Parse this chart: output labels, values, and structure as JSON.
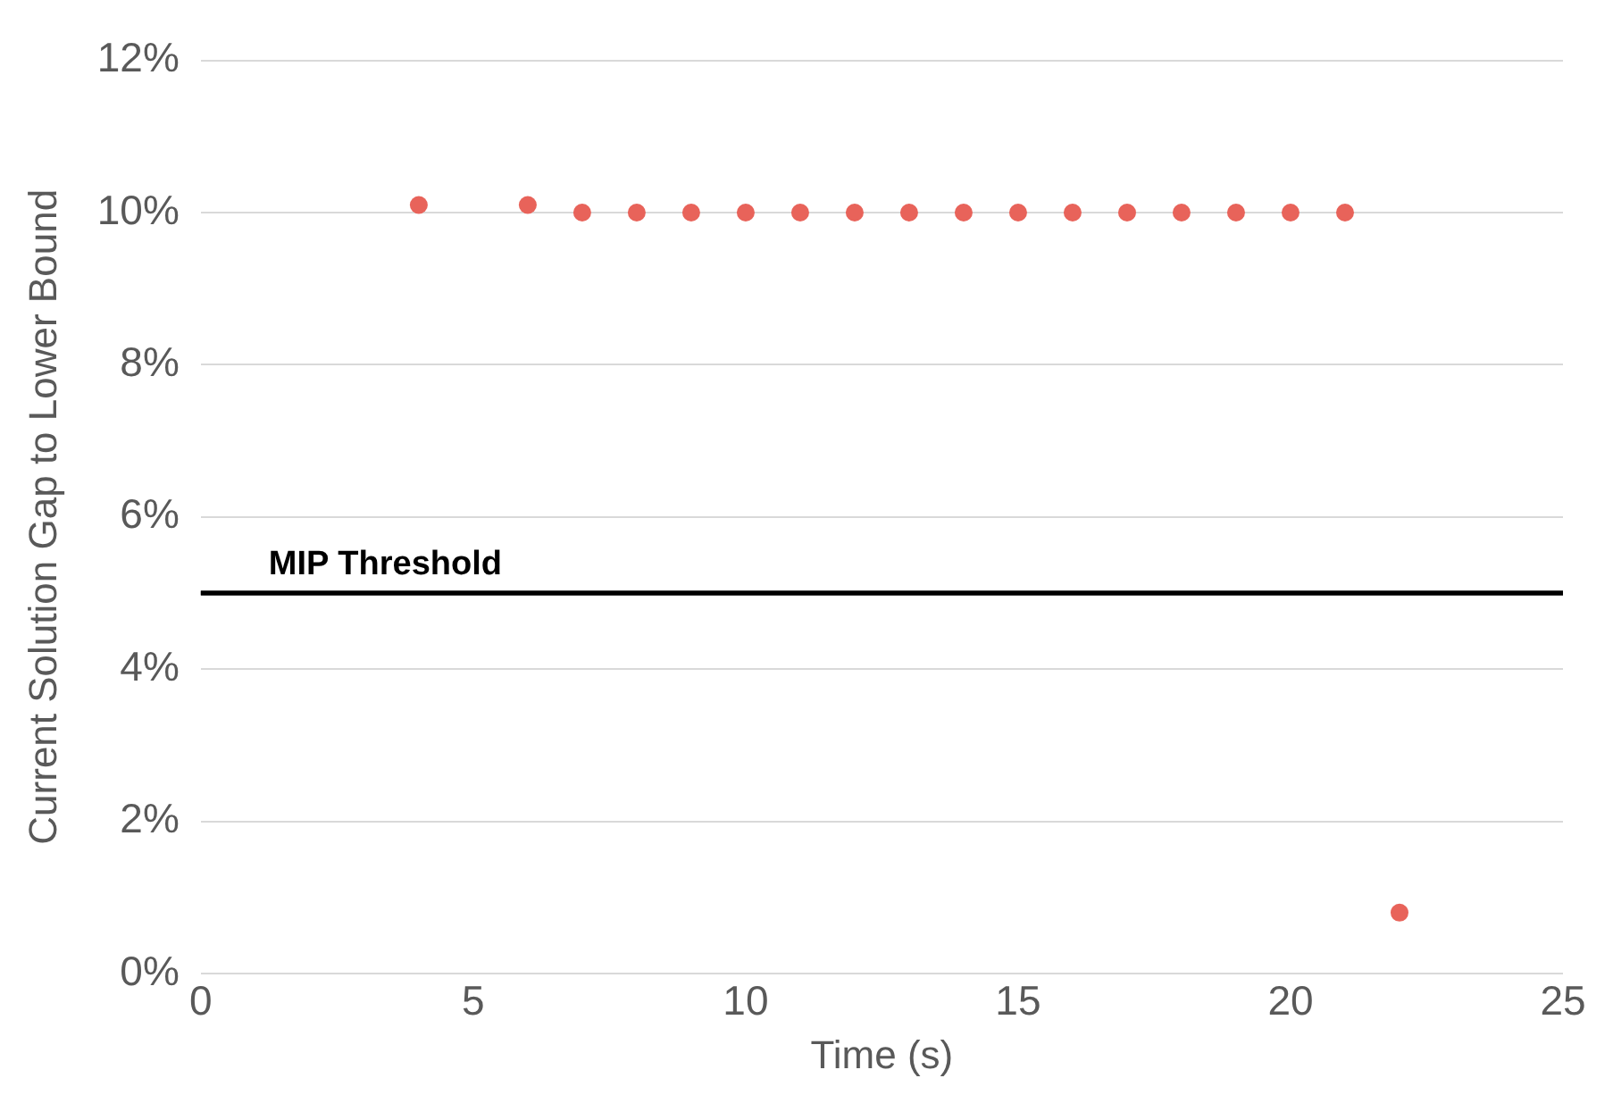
{
  "chart_data": {
    "type": "scatter",
    "xlabel": "Time (s)",
    "ylabel": "Current Solution Gap to Lower Bound",
    "series": [
      {
        "color": "#e8635a",
        "x": [
          4,
          6,
          7,
          8,
          9,
          10,
          11,
          12,
          13,
          14,
          15,
          16,
          17,
          18,
          19,
          20,
          21,
          22
        ],
        "values": [
          10.1,
          10.1,
          10,
          10,
          10,
          10,
          10,
          10,
          10,
          10,
          10,
          10,
          10,
          10,
          10,
          10,
          10,
          0.8
        ]
      }
    ],
    "xlim": [
      0,
      25
    ],
    "xticks": [
      0,
      5,
      10,
      15,
      20,
      25
    ],
    "ylim": [
      0,
      12
    ],
    "yticks": [
      {
        "value": 0,
        "label": "0%"
      },
      {
        "value": 2,
        "label": "2%"
      },
      {
        "value": 4,
        "label": "4%"
      },
      {
        "value": 6,
        "label": "6%"
      },
      {
        "value": 8,
        "label": "8%"
      },
      {
        "value": 10,
        "label": "10%"
      },
      {
        "value": 12,
        "label": "12%"
      }
    ],
    "ref_lines": [
      {
        "axis": "y",
        "value": 5,
        "label": "MIP Threshold",
        "color": "#000000"
      }
    ],
    "grid": "y",
    "legend": false,
    "marker": "circle"
  }
}
